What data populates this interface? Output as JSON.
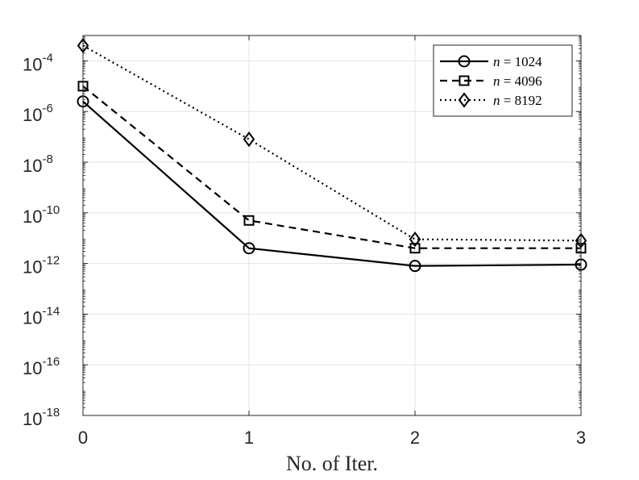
{
  "chart_data": {
    "type": "line",
    "xlabel": "No. of Iter.",
    "ylabel": "",
    "y_scale": "log",
    "x_ticks": [
      0,
      1,
      2,
      3
    ],
    "x_tick_labels": [
      "0",
      "1",
      "2",
      "3"
    ],
    "xlim": [
      0,
      3
    ],
    "ylim": [
      1e-18,
      0.001
    ],
    "y_ticks": [
      {
        "base": "10",
        "exp": "-18",
        "value": 1e-18
      },
      {
        "base": "10",
        "exp": "-16",
        "value": 1e-16
      },
      {
        "base": "10",
        "exp": "-14",
        "value": 1e-14
      },
      {
        "base": "10",
        "exp": "-12",
        "value": 1e-12
      },
      {
        "base": "10",
        "exp": "-10",
        "value": 1e-10
      },
      {
        "base": "10",
        "exp": "-8",
        "value": 1e-08
      },
      {
        "base": "10",
        "exp": "-6",
        "value": 1e-06
      },
      {
        "base": "10",
        "exp": "-4",
        "value": 0.0001
      }
    ],
    "grid": true,
    "legend_position": "top-right",
    "series": [
      {
        "name_var": "n",
        "name_eq": " = 1024",
        "marker": "circle",
        "line": "solid",
        "x": [
          0,
          1,
          2,
          3
        ],
        "y": [
          2.5e-06,
          4e-12,
          8e-13,
          9e-13
        ]
      },
      {
        "name_var": "n",
        "name_eq": " = 4096",
        "marker": "square",
        "line": "dashed",
        "x": [
          0,
          1,
          2,
          3
        ],
        "y": [
          1e-05,
          5e-11,
          4e-12,
          4e-12
        ]
      },
      {
        "name_var": "n",
        "name_eq": " = 8192",
        "marker": "diamond",
        "line": "dotted",
        "x": [
          0,
          1,
          2,
          3
        ],
        "y": [
          0.0004,
          8e-08,
          9e-12,
          8e-12
        ]
      }
    ]
  }
}
